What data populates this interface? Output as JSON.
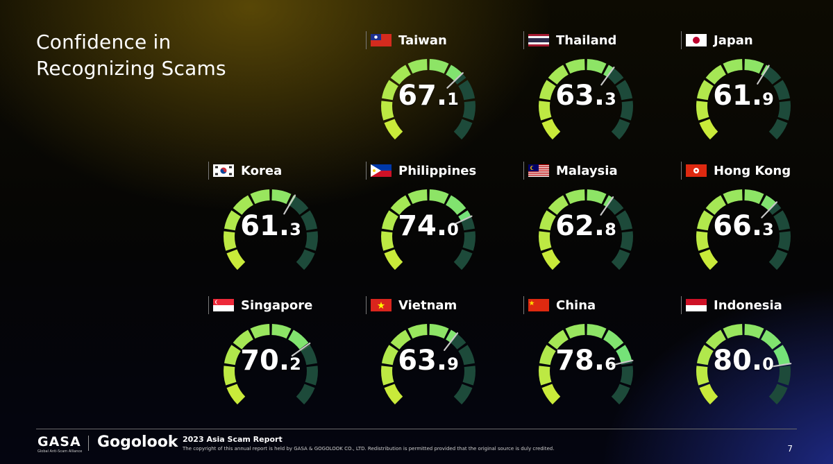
{
  "title_line1": "Confidence in",
  "title_line2": "Recognizing Scams",
  "chart_data": {
    "type": "gauge",
    "title": "Confidence in Recognizing Scams",
    "scale": [
      0,
      100
    ],
    "categories": [
      "Taiwan",
      "Thailand",
      "Japan",
      "Korea",
      "Philippines",
      "Malaysia",
      "Hong Kong",
      "Singapore",
      "Vietnam",
      "China",
      "Indonesia"
    ],
    "values": [
      67.1,
      63.3,
      61.9,
      61.3,
      74.0,
      62.8,
      66.3,
      70.2,
      63.9,
      78.6,
      80.0
    ],
    "value_labels": [
      {
        "int": "67.",
        "dec": "1"
      },
      {
        "int": "63.",
        "dec": "3"
      },
      {
        "int": "61.",
        "dec": "9"
      },
      {
        "int": "61.",
        "dec": "3"
      },
      {
        "int": "74.",
        "dec": "0"
      },
      {
        "int": "62.",
        "dec": "8"
      },
      {
        "int": "66.",
        "dec": "3"
      },
      {
        "int": "70.",
        "dec": "2"
      },
      {
        "int": "63.",
        "dec": "9"
      },
      {
        "int": "78.",
        "dec": "6"
      },
      {
        "int": "80.",
        "dec": "0"
      }
    ],
    "flag_icons": [
      "taiwan-flag-icon",
      "thailand-flag-icon",
      "japan-flag-icon",
      "korea-flag-icon",
      "philippines-flag-icon",
      "malaysia-flag-icon",
      "hong-kong-flag-icon",
      "singapore-flag-icon",
      "vietnam-flag-icon",
      "china-flag-icon",
      "indonesia-flag-icon"
    ],
    "colors": {
      "low": "#c9ea3a",
      "high": "#5de08a",
      "empty": "#1d4a3a",
      "needle": "#c8c8c8"
    }
  },
  "footer": {
    "gasa": "GASA",
    "gasa_sub": "Global Anti-Scam Alliance",
    "gogolook": "Gogolook",
    "report": "2023 Asia Scam Report",
    "copyright": "The copyright of this annual report is held by GASA & GOGOLOOK CO., LTD. Redistribution is permitted provided that the original source is duly credited.",
    "page": "7"
  }
}
